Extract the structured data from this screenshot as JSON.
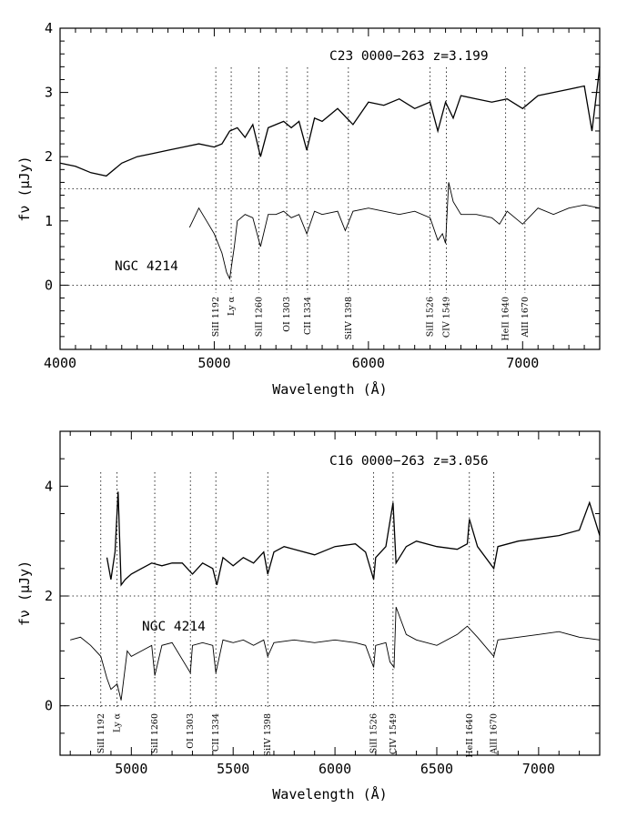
{
  "chart_data": [
    {
      "type": "line",
      "title": "C23 0000−263 z=3.199",
      "xlabel": "Wavelength (Å)",
      "ylabel": "fν (μJy)",
      "xlim": [
        4000,
        7500
      ],
      "ylim": [
        -1,
        4
      ],
      "xticks": [
        "4000",
        "5000",
        "6000",
        "7000"
      ],
      "yticks": [
        "0",
        "1",
        "2",
        "3",
        "4"
      ],
      "annotation": "NGC 4214",
      "reference_levels": [
        0,
        1.5
      ],
      "grid": false,
      "lines": [
        {
          "label": "SiII 1192",
          "x": 5010
        },
        {
          "label": "Ly α",
          "x": 5110
        },
        {
          "label": "SiII 1260",
          "x": 5290
        },
        {
          "label": "OI 1303",
          "x": 5470
        },
        {
          "label": "CII 1334",
          "x": 5605
        },
        {
          "label": "SiIV 1398",
          "x": 5870
        },
        {
          "label": "SiII 1526",
          "x": 6400
        },
        {
          "label": "CIV 1549",
          "x": 6505
        },
        {
          "label": "HeII 1640",
          "x": 6890
        },
        {
          "label": "AlII 1670",
          "x": 7015
        }
      ],
      "series": [
        {
          "x": [
            4000,
            4100,
            4200,
            4300,
            4400,
            4500,
            4600,
            4700,
            4800,
            4900,
            5000,
            5050,
            5100,
            5150,
            5200,
            5250,
            5300,
            5350,
            5400,
            5450,
            5500,
            5550,
            5600,
            5650,
            5700,
            5800,
            5900,
            6000,
            6100,
            6200,
            6300,
            6400,
            6450,
            6500,
            6550,
            6600,
            6700,
            6800,
            6900,
            7000,
            7100,
            7200,
            7300,
            7400,
            7450,
            7500
          ],
          "y": [
            1.9,
            1.85,
            1.75,
            1.7,
            1.9,
            2.0,
            2.05,
            2.1,
            2.15,
            2.2,
            2.15,
            2.2,
            2.4,
            2.45,
            2.3,
            2.5,
            2.0,
            2.45,
            2.5,
            2.55,
            2.45,
            2.55,
            2.1,
            2.6,
            2.55,
            2.75,
            2.5,
            2.85,
            2.8,
            2.9,
            2.75,
            2.85,
            2.4,
            2.85,
            2.6,
            2.95,
            2.9,
            2.85,
            2.9,
            2.75,
            2.95,
            3.0,
            3.05,
            3.1,
            2.4,
            3.4
          ]
        },
        {
          "name": "NGC 4214",
          "x": [
            4840,
            4900,
            4950,
            5000,
            5050,
            5080,
            5100,
            5130,
            5150,
            5200,
            5250,
            5300,
            5350,
            5400,
            5450,
            5500,
            5550,
            5600,
            5650,
            5700,
            5800,
            5850,
            5900,
            6000,
            6100,
            6200,
            6300,
            6400,
            6450,
            6480,
            6500,
            6520,
            6550,
            6600,
            6700,
            6800,
            6850,
            6900,
            7000,
            7100,
            7200,
            7300,
            7400,
            7500
          ],
          "y": [
            0.9,
            1.2,
            1.0,
            0.8,
            0.5,
            0.2,
            0.1,
            0.6,
            1.0,
            1.1,
            1.05,
            0.6,
            1.1,
            1.1,
            1.15,
            1.05,
            1.1,
            0.8,
            1.15,
            1.1,
            1.15,
            0.85,
            1.15,
            1.2,
            1.15,
            1.1,
            1.15,
            1.05,
            0.7,
            0.8,
            0.65,
            1.6,
            1.3,
            1.1,
            1.1,
            1.05,
            0.95,
            1.15,
            0.95,
            1.2,
            1.1,
            1.2,
            1.25,
            1.2
          ]
        }
      ]
    },
    {
      "type": "line",
      "title": "C16 0000−263 z=3.056",
      "xlabel": "Wavelength (Å)",
      "ylabel": "fν (μJy)",
      "xlim": [
        4650,
        7300
      ],
      "ylim": [
        -0.9,
        5
      ],
      "xticks": [
        "5000",
        "5500",
        "6000",
        "6500",
        "7000"
      ],
      "yticks": [
        "0",
        "2",
        "4"
      ],
      "annotation": "NGC 4214",
      "reference_levels": [
        0,
        2
      ],
      "grid": false,
      "lines": [
        {
          "label": "SiII 1192",
          "x": 4850
        },
        {
          "label": "Ly α",
          "x": 4930
        },
        {
          "label": "SiII 1260",
          "x": 5115
        },
        {
          "label": "OI 1303",
          "x": 5290
        },
        {
          "label": "CII 1334",
          "x": 5415
        },
        {
          "label": "SiIV 1398",
          "x": 5670
        },
        {
          "label": "SiII 1526",
          "x": 6190
        },
        {
          "label": "CIV 1549",
          "x": 6285
        },
        {
          "label": "HeII 1640",
          "x": 6660
        },
        {
          "label": "AlII 1670",
          "x": 6780
        }
      ],
      "series": [
        {
          "x": [
            4880,
            4900,
            4920,
            4935,
            4950,
            4970,
            5000,
            5050,
            5100,
            5150,
            5200,
            5250,
            5300,
            5350,
            5400,
            5420,
            5450,
            5500,
            5550,
            5600,
            5650,
            5670,
            5700,
            5750,
            5800,
            5900,
            6000,
            6100,
            6150,
            6190,
            6200,
            6250,
            6285,
            6300,
            6350,
            6400,
            6500,
            6600,
            6650,
            6660,
            6700,
            6780,
            6800,
            6900,
            7000,
            7100,
            7200,
            7250,
            7300
          ],
          "y": [
            2.7,
            2.3,
            2.8,
            3.9,
            2.2,
            2.3,
            2.4,
            2.5,
            2.6,
            2.55,
            2.6,
            2.6,
            2.4,
            2.6,
            2.5,
            2.2,
            2.7,
            2.55,
            2.7,
            2.6,
            2.8,
            2.4,
            2.8,
            2.9,
            2.85,
            2.75,
            2.9,
            2.95,
            2.8,
            2.3,
            2.7,
            2.9,
            3.7,
            2.6,
            2.9,
            3.0,
            2.9,
            2.85,
            2.95,
            3.4,
            2.9,
            2.5,
            2.9,
            3.0,
            3.05,
            3.1,
            3.2,
            3.7,
            3.1
          ]
        },
        {
          "name": "NGC 4214",
          "x": [
            4700,
            4750,
            4800,
            4850,
            4880,
            4900,
            4930,
            4950,
            4980,
            5000,
            5050,
            5100,
            5115,
            5150,
            5200,
            5290,
            5300,
            5350,
            5400,
            5415,
            5450,
            5500,
            5550,
            5600,
            5650,
            5670,
            5700,
            5800,
            5900,
            6000,
            6100,
            6150,
            6190,
            6200,
            6250,
            6270,
            6290,
            6300,
            6350,
            6400,
            6500,
            6600,
            6650,
            6700,
            6780,
            6800,
            6900,
            7000,
            7100,
            7200,
            7300
          ],
          "y": [
            1.2,
            1.25,
            1.1,
            0.9,
            0.5,
            0.3,
            0.4,
            0.1,
            1.0,
            0.9,
            1.0,
            1.1,
            0.55,
            1.1,
            1.15,
            0.6,
            1.1,
            1.15,
            1.1,
            0.6,
            1.2,
            1.15,
            1.2,
            1.1,
            1.2,
            0.9,
            1.15,
            1.2,
            1.15,
            1.2,
            1.15,
            1.1,
            0.7,
            1.1,
            1.15,
            0.8,
            0.7,
            1.8,
            1.3,
            1.2,
            1.1,
            1.3,
            1.45,
            1.25,
            0.9,
            1.2,
            1.25,
            1.3,
            1.35,
            1.25,
            1.2
          ]
        }
      ]
    }
  ]
}
